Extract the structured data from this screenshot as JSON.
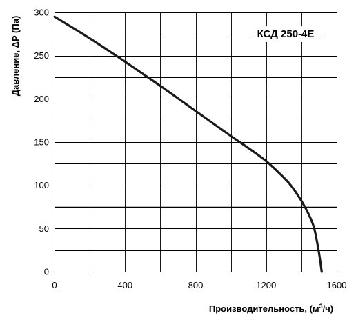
{
  "chart_data": {
    "type": "line",
    "model_label": "КСД 250-4Е",
    "xlabel": "Производительность, (м³/ч)",
    "ylabel": "Давление, ΔP (Па)",
    "xlim": [
      0,
      1600
    ],
    "ylim": [
      0,
      300
    ],
    "x_ticks": [
      0,
      400,
      800,
      1200,
      1600
    ],
    "y_ticks": [
      0,
      50,
      100,
      150,
      200,
      250,
      300
    ],
    "x_grid_step": 200,
    "y_grid_step": 25,
    "grid": true,
    "reference_line_y": 75,
    "series": [
      {
        "x": [
          0,
          200,
          400,
          600,
          800,
          1000,
          1100,
          1200,
          1280,
          1340,
          1400,
          1440,
          1470,
          1490,
          1505,
          1515
        ],
        "y": [
          295,
          270,
          243,
          215,
          186,
          157,
          143,
          128,
          113,
          100,
          82,
          67,
          52,
          33,
          15,
          0
        ]
      }
    ],
    "colors": {
      "line": "#1a1a1a",
      "grid": "#000000",
      "background": "#ffffff"
    }
  }
}
